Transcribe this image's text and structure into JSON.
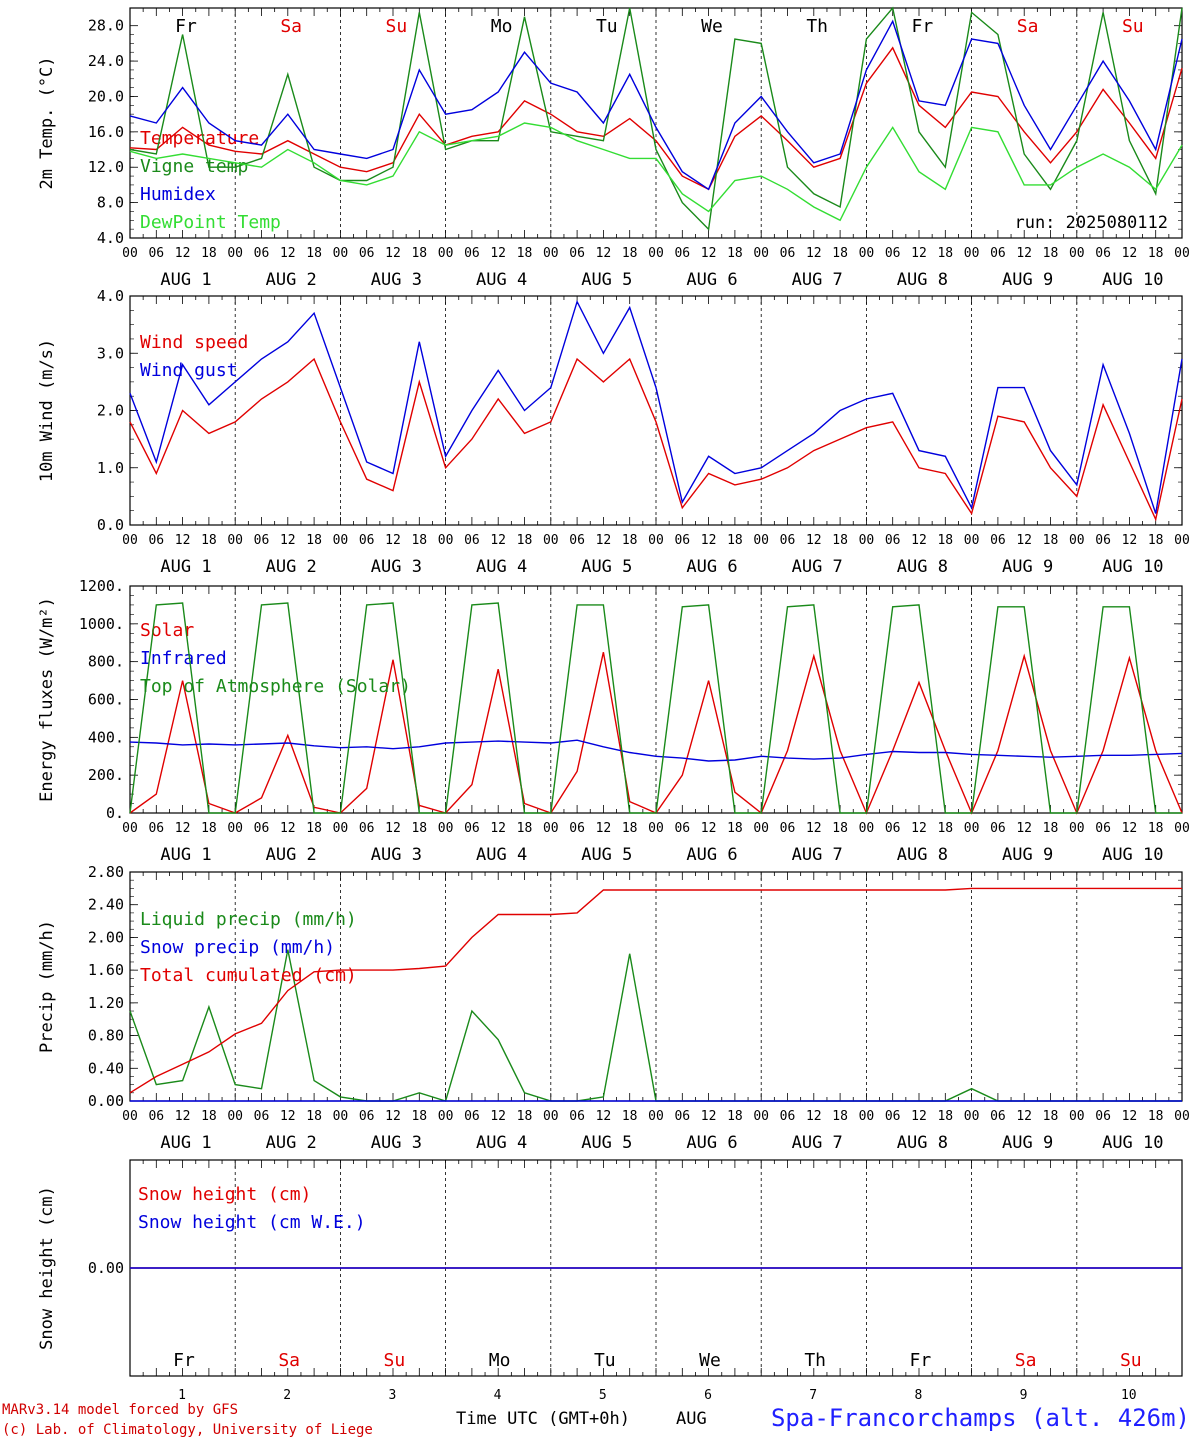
{
  "colors": {
    "red": "#e00000",
    "green": "#1a8a1a",
    "blue": "#0000dd",
    "lightgreen": "#33dd33",
    "sat": "#e00000",
    "sun": "#e00000"
  },
  "days": {
    "dow": [
      "Fr",
      "Sa",
      "Su",
      "Mo",
      "Tu",
      "We",
      "Th",
      "Fr",
      "Sa",
      "Su"
    ],
    "dow_colors": [
      "#000",
      "#e00000",
      "#e00000",
      "#000",
      "#000",
      "#000",
      "#000",
      "#000",
      "#e00000",
      "#e00000"
    ],
    "dates": [
      "AUG  1",
      "AUG  2",
      "AUG  3",
      "AUG  4",
      "AUG  5",
      "AUG  6",
      "AUG  7",
      "AUG  8",
      "AUG  9",
      "AUG 10"
    ],
    "numbers": [
      "1",
      "2",
      "3",
      "4",
      "5",
      "6",
      "7",
      "8",
      "9",
      "10"
    ],
    "hour_ticks": [
      "00",
      "06",
      "12",
      "18"
    ],
    "final_tick": "00"
  },
  "footer": {
    "model": "MARv3.14 model forced by GFS",
    "lab": "(c) Lab. of Climatology, University of Liege",
    "time_label": "Time UTC (GMT+0h)",
    "aug": "AUG",
    "site": "Spa-Francorchamps (alt. 426m)"
  },
  "chart_data": [
    {
      "type": "line",
      "id": "temp",
      "ylabel": "2m Temp. (°C)",
      "ylim": [
        4,
        30
      ],
      "yticks": [
        "4.0",
        "8.0",
        "12.0",
        "16.0",
        "20.0",
        "24.0",
        "28.0"
      ],
      "annotation": "run: 2025080112",
      "x_hours": [
        0,
        6,
        12,
        18,
        24,
        30,
        36,
        42,
        48,
        54,
        60,
        66,
        72,
        78,
        84,
        90,
        96,
        102,
        108,
        114,
        120,
        126,
        132,
        138,
        144,
        150,
        156,
        162,
        168,
        174,
        180,
        186,
        192,
        198,
        204,
        210,
        216,
        222,
        228,
        234,
        240
      ],
      "series": [
        {
          "name": "Temperature",
          "color": "red",
          "values": [
            14.2,
            14.0,
            16.5,
            14.5,
            13.8,
            13.5,
            15.0,
            13.5,
            12.0,
            11.5,
            12.5,
            18.0,
            14.5,
            15.5,
            16.0,
            19.5,
            18.0,
            16.0,
            15.5,
            17.5,
            15.0,
            11.0,
            9.5,
            15.5,
            17.8,
            15.0,
            12.0,
            13.0,
            21.5,
            25.5,
            19.0,
            16.5,
            20.5,
            20.0,
            16.0,
            12.5,
            16.0,
            20.8,
            17.0,
            13.0,
            23.2
          ]
        },
        {
          "name": "Vigne temp",
          "color": "green",
          "values": [
            14.0,
            13.5,
            27.0,
            12.0,
            12.0,
            13.0,
            22.5,
            12.0,
            10.5,
            10.5,
            12.0,
            29.5,
            14.0,
            15.0,
            15.0,
            29.0,
            16.0,
            15.5,
            15.0,
            30.0,
            14.0,
            8.0,
            5.0,
            26.5,
            26.0,
            12.0,
            9.0,
            7.5,
            26.5,
            30.0,
            16.0,
            12.0,
            29.5,
            27.0,
            13.5,
            9.5,
            15.0,
            29.5,
            15.0,
            9.0,
            30.0
          ]
        },
        {
          "name": "Humidex",
          "color": "blue",
          "values": [
            17.8,
            17.0,
            21.0,
            17.0,
            15.0,
            14.5,
            18.0,
            14.0,
            13.5,
            13.0,
            14.0,
            23.0,
            18.0,
            18.5,
            20.5,
            25.0,
            21.5,
            20.5,
            17.0,
            22.5,
            16.5,
            11.5,
            9.5,
            17.0,
            20.0,
            16.0,
            12.5,
            13.5,
            23.0,
            28.5,
            19.5,
            19.0,
            26.5,
            26.0,
            19.0,
            14.0,
            19.0,
            24.0,
            19.5,
            14.0,
            26.5
          ]
        },
        {
          "name": "DewPoint Temp",
          "color": "lightgreen",
          "values": [
            13.8,
            13.0,
            13.5,
            13.0,
            12.5,
            12.0,
            14.0,
            12.5,
            10.5,
            10.0,
            11.0,
            16.0,
            14.5,
            15.0,
            15.5,
            17.0,
            16.5,
            15.0,
            14.0,
            13.0,
            13.0,
            9.0,
            7.0,
            10.5,
            11.0,
            9.5,
            7.5,
            6.0,
            12.0,
            16.5,
            11.5,
            9.5,
            16.5,
            16.0,
            10.0,
            10.0,
            12.0,
            13.5,
            12.0,
            9.5,
            14.5
          ]
        }
      ]
    },
    {
      "type": "line",
      "id": "wind",
      "ylabel": "10m Wind (m/s)",
      "ylim": [
        0,
        4
      ],
      "yticks": [
        "0.0",
        "1.0",
        "2.0",
        "3.0",
        "4.0"
      ],
      "x_hours": [
        0,
        6,
        12,
        18,
        24,
        30,
        36,
        42,
        48,
        54,
        60,
        66,
        72,
        78,
        84,
        90,
        96,
        102,
        108,
        114,
        120,
        126,
        132,
        138,
        144,
        150,
        156,
        162,
        168,
        174,
        180,
        186,
        192,
        198,
        204,
        210,
        216,
        222,
        228,
        234,
        240
      ],
      "series": [
        {
          "name": "Wind speed",
          "color": "red",
          "values": [
            1.8,
            0.9,
            2.0,
            1.6,
            1.8,
            2.2,
            2.5,
            2.9,
            1.8,
            0.8,
            0.6,
            2.5,
            1.0,
            1.5,
            2.2,
            1.6,
            1.8,
            2.9,
            2.5,
            2.9,
            1.8,
            0.3,
            0.9,
            0.7,
            0.8,
            1.0,
            1.3,
            1.5,
            1.7,
            1.8,
            1.0,
            0.9,
            0.2,
            1.9,
            1.8,
            1.0,
            0.5,
            2.1,
            1.1,
            0.1,
            2.2
          ]
        },
        {
          "name": "Wind gust",
          "color": "blue",
          "values": [
            2.3,
            1.1,
            2.8,
            2.1,
            2.5,
            2.9,
            3.2,
            3.7,
            2.4,
            1.1,
            0.9,
            3.2,
            1.2,
            2.0,
            2.7,
            2.0,
            2.4,
            3.9,
            3.0,
            3.8,
            2.4,
            0.4,
            1.2,
            0.9,
            1.0,
            1.3,
            1.6,
            2.0,
            2.2,
            2.3,
            1.3,
            1.2,
            0.3,
            2.4,
            2.4,
            1.3,
            0.7,
            2.8,
            1.6,
            0.2,
            2.9
          ]
        }
      ]
    },
    {
      "type": "line",
      "id": "energy",
      "ylabel": "Energy fluxes (W/m²)",
      "ylim": [
        0,
        1200
      ],
      "yticks": [
        "0.",
        "200.",
        "400.",
        "600.",
        "800.",
        "1000.",
        "1200."
      ],
      "x_hours": [
        0,
        6,
        12,
        18,
        24,
        30,
        36,
        42,
        48,
        54,
        60,
        66,
        72,
        78,
        84,
        90,
        96,
        102,
        108,
        114,
        120,
        126,
        132,
        138,
        144,
        150,
        156,
        162,
        168,
        174,
        180,
        186,
        192,
        198,
        204,
        210,
        216,
        222,
        228,
        234,
        240
      ],
      "series": [
        {
          "name": "Solar",
          "color": "red",
          "values": [
            0,
            100,
            700,
            50,
            0,
            80,
            410,
            30,
            0,
            130,
            810,
            40,
            0,
            150,
            760,
            50,
            0,
            220,
            850,
            60,
            0,
            200,
            700,
            110,
            0,
            330,
            830,
            330,
            0,
            330,
            690,
            330,
            0,
            330,
            830,
            330,
            0,
            330,
            820,
            330,
            0
          ]
        },
        {
          "name": "Infrared",
          "color": "blue",
          "values": [
            375,
            370,
            360,
            365,
            360,
            365,
            370,
            355,
            345,
            350,
            340,
            350,
            370,
            375,
            380,
            375,
            370,
            385,
            350,
            320,
            300,
            290,
            275,
            280,
            300,
            290,
            285,
            290,
            310,
            325,
            320,
            320,
            310,
            305,
            300,
            295,
            300,
            305,
            305,
            310,
            315
          ]
        },
        {
          "name": "Top of Atmosphere (Solar)",
          "color": "green",
          "values": [
            0,
            1100,
            1110,
            0,
            0,
            1100,
            1110,
            0,
            0,
            1100,
            1110,
            0,
            0,
            1100,
            1110,
            0,
            0,
            1100,
            1100,
            0,
            0,
            1090,
            1100,
            0,
            0,
            1090,
            1100,
            0,
            0,
            1090,
            1100,
            0,
            0,
            1090,
            1090,
            0,
            0,
            1090,
            1090,
            0,
            0
          ]
        }
      ]
    },
    {
      "type": "line",
      "id": "precip",
      "ylabel": "Precip (mm/h)",
      "ylim": [
        0,
        2.8
      ],
      "yticks": [
        "0.00",
        "0.40",
        "0.80",
        "1.20",
        "1.60",
        "2.00",
        "2.40",
        "2.80"
      ],
      "x_hours": [
        0,
        6,
        12,
        18,
        24,
        30,
        36,
        42,
        48,
        54,
        60,
        66,
        72,
        78,
        84,
        90,
        96,
        102,
        108,
        114,
        120,
        126,
        132,
        138,
        144,
        150,
        156,
        162,
        168,
        174,
        180,
        186,
        192,
        198,
        204,
        210,
        216,
        222,
        228,
        234,
        240
      ],
      "series": [
        {
          "name": "Liquid precip (mm/h)",
          "color": "green",
          "values": [
            1.1,
            0.2,
            0.25,
            1.15,
            0.2,
            0.15,
            1.85,
            0.25,
            0.05,
            0.0,
            0.0,
            0.1,
            0.0,
            1.1,
            0.75,
            0.1,
            0.0,
            0.0,
            0.05,
            1.8,
            0.0,
            0.0,
            0.0,
            0.0,
            0.0,
            0.0,
            0.0,
            0.0,
            0.0,
            0.0,
            0.0,
            0.0,
            0.15,
            0.0,
            0.0,
            0.0,
            0.0,
            0.0,
            0.0,
            0.0,
            0.0
          ]
        },
        {
          "name": "Snow precip (mm/h)",
          "color": "blue",
          "values": [
            0,
            0,
            0,
            0,
            0,
            0,
            0,
            0,
            0,
            0,
            0,
            0,
            0,
            0,
            0,
            0,
            0,
            0,
            0,
            0,
            0,
            0,
            0,
            0,
            0,
            0,
            0,
            0,
            0,
            0,
            0,
            0,
            0,
            0,
            0,
            0,
            0,
            0,
            0,
            0,
            0
          ]
        },
        {
          "name": "Total cumulated (cm)",
          "color": "red",
          "values": [
            0.1,
            0.3,
            0.45,
            0.6,
            0.82,
            0.95,
            1.35,
            1.58,
            1.6,
            1.6,
            1.6,
            1.62,
            1.65,
            2.0,
            2.28,
            2.28,
            2.28,
            2.3,
            2.58,
            2.58,
            2.58,
            2.58,
            2.58,
            2.58,
            2.58,
            2.58,
            2.58,
            2.58,
            2.58,
            2.58,
            2.58,
            2.58,
            2.6,
            2.6,
            2.6,
            2.6,
            2.6,
            2.6,
            2.6,
            2.6,
            2.6
          ]
        }
      ]
    },
    {
      "type": "line",
      "id": "snow",
      "ylabel": "Snow height (cm)",
      "ylim": [
        -1,
        1
      ],
      "yticks": [
        "0.00"
      ],
      "x_hours": [
        0,
        240
      ],
      "series": [
        {
          "name": "Snow height (cm)",
          "color": "red",
          "values": [
            0,
            0
          ]
        },
        {
          "name": "Snow height (cm W.E.)",
          "color": "blue",
          "values": [
            0,
            0
          ]
        }
      ]
    }
  ]
}
